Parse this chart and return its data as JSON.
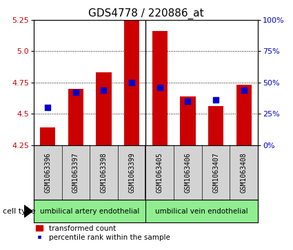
{
  "title": "GDS4778 / 220886_at",
  "samples": [
    "GSM1063396",
    "GSM1063397",
    "GSM1063398",
    "GSM1063399",
    "GSM1063405",
    "GSM1063406",
    "GSM1063407",
    "GSM1063408"
  ],
  "red_values": [
    4.39,
    4.7,
    4.83,
    5.25,
    5.16,
    4.64,
    4.56,
    4.73
  ],
  "blue_percentiles": [
    30,
    42,
    44,
    50,
    46,
    35,
    36,
    44
  ],
  "baseline": 4.25,
  "ylim_left": [
    4.25,
    5.25
  ],
  "ylim_right": [
    0,
    100
  ],
  "yticks_left": [
    4.25,
    4.5,
    4.75,
    5.0,
    5.25
  ],
  "yticks_right": [
    0,
    25,
    50,
    75,
    100
  ],
  "ytick_labels_right": [
    "0%",
    "25%",
    "50%",
    "75%",
    "100%"
  ],
  "group1_label": "umbilical artery endothelial",
  "group2_label": "umbilical vein endothelial",
  "group1_indices": [
    0,
    1,
    2,
    3
  ],
  "group2_indices": [
    4,
    5,
    6,
    7
  ],
  "cell_type_label": "cell type",
  "legend_red": "transformed count",
  "legend_blue": "percentile rank within the sample",
  "bar_color": "#cc0000",
  "dot_color": "#0000cc",
  "group_bg": "#90ee90",
  "bar_width": 0.55,
  "dot_size": 30,
  "title_fontsize": 11,
  "tick_fontsize": 8,
  "background_color": "#ffffff",
  "plot_bg": "#ffffff",
  "sample_area_bg": "#d3d3d3"
}
